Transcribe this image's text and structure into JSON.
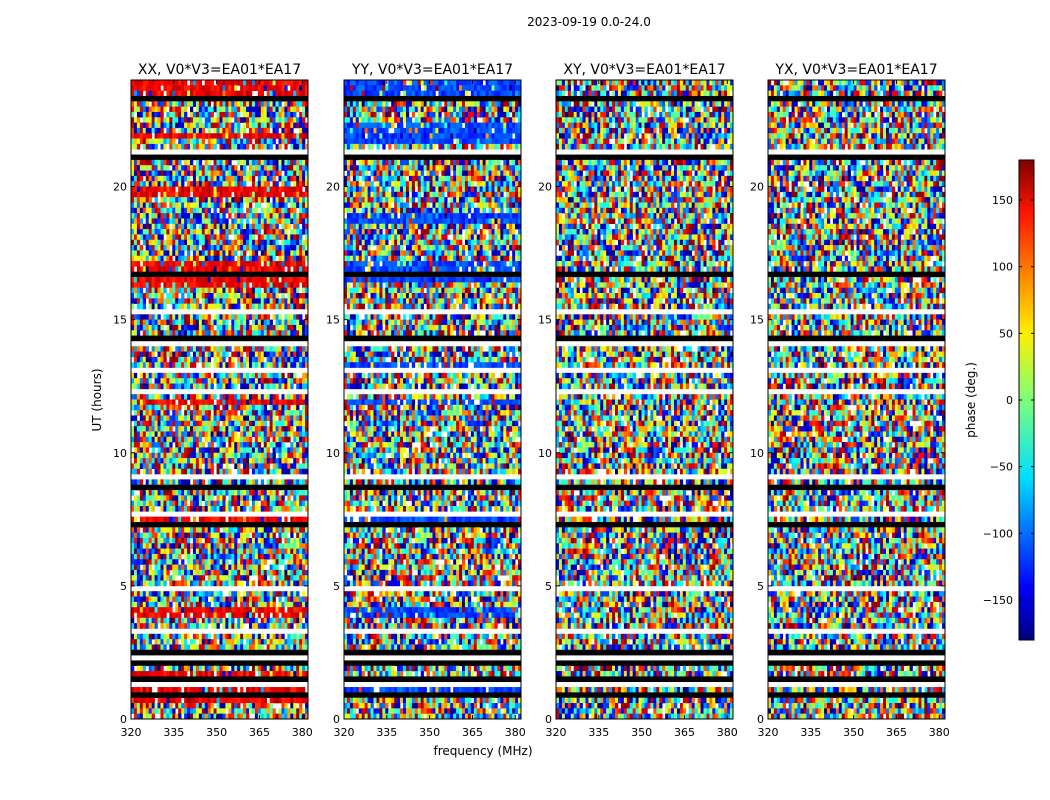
{
  "chart_data": {
    "type": "heatmap",
    "title": "2023-09-19 0.0-24.0",
    "xlabel": "frequency (MHz)",
    "ylabel": "UT (hours)",
    "xlim": [
      320,
      382
    ],
    "ylim": [
      0,
      24
    ],
    "xticks": [
      "320",
      "335",
      "350",
      "365",
      "380"
    ],
    "xtick_values": [
      320,
      335,
      350,
      365,
      380
    ],
    "yticks": [
      "0",
      "5",
      "10",
      "15",
      "20"
    ],
    "ytick_values": [
      0,
      5,
      10,
      15,
      20
    ],
    "colormap": "jet",
    "colorbar": {
      "label": "phase (deg.)",
      "range": [
        -180,
        180
      ],
      "ticks": [
        "150",
        "100",
        "50",
        "0",
        "−50",
        "−100",
        "−150"
      ],
      "tick_values": [
        150,
        100,
        50,
        0,
        -50,
        -100,
        -150
      ]
    },
    "panels": [
      {
        "title": "XX, V0*V3=EA01*EA17",
        "polarization": "XX",
        "dominant_phase": 140
      },
      {
        "title": "YY, V0*V3=EA01*EA17",
        "polarization": "YY",
        "dominant_phase": -110
      },
      {
        "title": "XY, V0*V3=EA01*EA17",
        "polarization": "XY",
        "dominant_phase": null
      },
      {
        "title": "YX, V0*V3=EA01*EA17",
        "polarization": "YX",
        "dominant_phase": null
      }
    ],
    "flagged_hours": [
      0.2,
      1.3,
      1.8,
      2.3,
      3.3,
      3.6,
      4.9,
      7.7,
      9.1,
      9.6,
      11.6,
      12.3,
      13.1,
      13.4,
      14.1,
      15.2,
      15.3,
      16.4,
      17.6,
      17.8,
      20.2,
      20.6,
      21.3,
      22.4,
      23.0,
      23.6
    ],
    "black_hours": [
      0.9,
      1.5,
      2.1,
      2.5,
      4.2,
      4.6,
      5.0,
      5.2,
      5.8,
      7.3,
      8.2,
      8.7,
      9.4,
      10.2,
      11.4,
      12.8,
      14.0,
      14.3,
      15.0,
      16.0,
      16.7,
      17.0,
      17.4,
      19.8,
      21.1,
      22.8,
      23.3
    ],
    "coherent_hours_xx": [
      0.8,
      1.2,
      1.6,
      4.0,
      7.5,
      11.9,
      16.4,
      16.8,
      17.1,
      19.8,
      21.9,
      23.5,
      23.8
    ],
    "coherent_hours_yy": [
      1.1,
      4.0,
      7.5,
      11.9,
      13.2,
      16.5,
      17.0,
      18.8,
      21.8,
      22.2,
      23.4,
      23.8
    ]
  }
}
